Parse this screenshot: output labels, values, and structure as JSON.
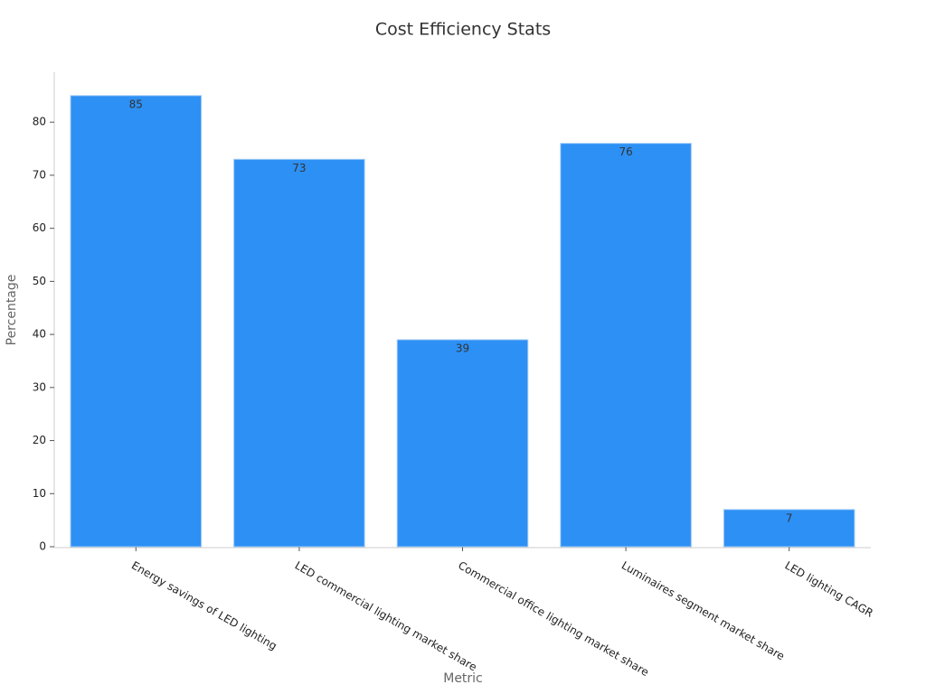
{
  "chart_data": {
    "type": "bar",
    "title": "Cost Efficiency Stats",
    "x_label": "Metric",
    "y_label": "Percentage",
    "categories": [
      "Energy savings of LED lighting",
      "LED commercial lighting market share",
      "Commercial office lighting market share",
      "Luminaires segment market share",
      "LED lighting CAGR"
    ],
    "values": [
      85,
      73,
      39,
      76,
      7
    ],
    "color": "#2d90f5",
    "ylim": [
      0,
      89.4
    ],
    "yticks": [
      0,
      10,
      20,
      30,
      40,
      50,
      60,
      70,
      80
    ],
    "grid": false
  }
}
